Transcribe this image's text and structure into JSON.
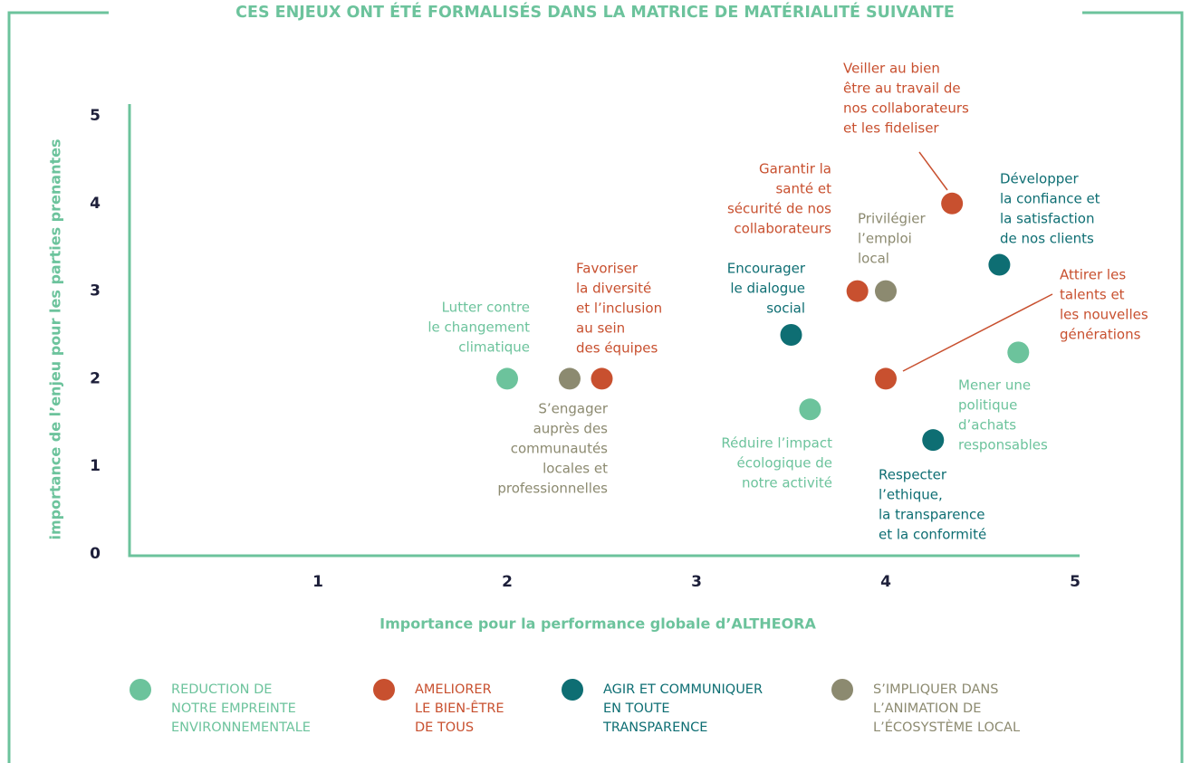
{
  "chart_data": {
    "type": "scatter",
    "title": "CES ENJEUX ONT ÉTÉ FORMALISÉS DANS LA MATRICE DE MATÉRIALITÉ SUIVANTE",
    "x_label": "Importance pour la performance globale d’ALTHEORA",
    "y_label": "importance de l’enjeu pour les parties prenantes",
    "xlim": [
      0,
      5
    ],
    "ylim": [
      0,
      5
    ],
    "xticks": [
      1,
      2,
      3,
      4,
      5
    ],
    "yticks": [
      0,
      1,
      2,
      3,
      4,
      5
    ],
    "series": [
      {
        "name": [
          "REDUCTION DE",
          "NOTRE EMPREINTE",
          "ENVIRONNEMENTALE"
        ],
        "color": "#6cc39c",
        "x": [
          2,
          3.6,
          4.7
        ],
        "values": [
          2,
          1.65,
          2.3
        ],
        "labels": [
          [
            "Lutter contre",
            "le changement",
            "climatique"
          ],
          [
            "Réduire l’impact",
            "écologique de",
            "notre activité"
          ],
          [
            "Mener une",
            "politique",
            "d’achats",
            "responsables"
          ]
        ]
      },
      {
        "name": [
          "AMELIORER",
          "LE BIEN-ÊTRE",
          "DE TOUS"
        ],
        "color": "#c8502f",
        "x": [
          2.5,
          3.85,
          4,
          4.35
        ],
        "values": [
          2,
          3,
          2,
          4
        ],
        "labels": [
          [
            "Favoriser",
            "la diversité",
            "et l’inclusion",
            "au sein",
            "des équipes"
          ],
          [
            "Garantir la",
            "santé et",
            "sécurité de nos",
            "collaborateurs"
          ],
          [
            "Attirer les",
            "talents et",
            "les nouvelles",
            "générations"
          ],
          [
            "Veiller au bien",
            "être au travail de",
            "nos collaborateurs",
            "et les  fideliser"
          ]
        ]
      },
      {
        "name": [
          "AGIR ET COMMUNIQUER",
          "EN TOUTE",
          "TRANSPARENCE"
        ],
        "color": "#0e6e73",
        "x": [
          3.5,
          4.6,
          4.25
        ],
        "values": [
          2.5,
          3.3,
          1.3
        ],
        "labels": [
          [
            "Encourager",
            "le dialogue",
            "social"
          ],
          [
            "Développer",
            "la confiance et",
            "la  satisfaction",
            "de nos clients"
          ],
          [
            "Respecter",
            "l’ethique,",
            "la transparence",
            "et la conformité"
          ]
        ]
      },
      {
        "name": [
          "S’IMPLIQUER DANS",
          "L’ANIMATION DE",
          "L’ÉCOSYSTÈME LOCAL"
        ],
        "color": "#8c8a70",
        "x": [
          2.33,
          4
        ],
        "values": [
          2,
          3
        ],
        "labels": [
          [
            "S’engager",
            "auprès des",
            "communautés",
            "locales et",
            "professionnelles"
          ],
          [
            "Privilégier",
            "l’emploi",
            "local"
          ]
        ]
      }
    ]
  }
}
